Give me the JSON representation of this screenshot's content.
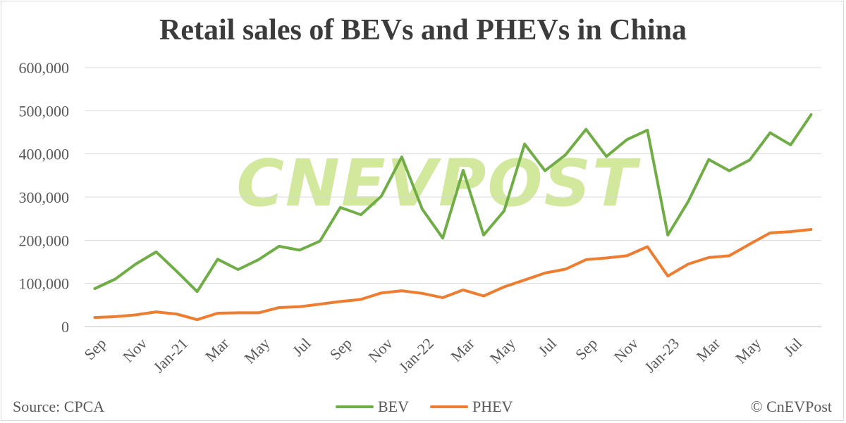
{
  "chart_data": {
    "type": "line",
    "title": "Retail sales of BEVs and PHEVs in China",
    "xlabel": "",
    "ylabel": "",
    "ylim": [
      0,
      600000
    ],
    "yticks": [
      "0",
      "100,000",
      "200,000",
      "300,000",
      "400,000",
      "500,000",
      "600,000"
    ],
    "grid": "horizontal",
    "legend_position": "bottom",
    "x_tick_labels": [
      "Sep",
      "",
      "Nov",
      "",
      "Jan-21",
      "",
      "Mar",
      "",
      "May",
      "",
      "Jul",
      "",
      "Sep",
      "",
      "Nov",
      "",
      "Jan-22",
      "",
      "Mar",
      "",
      "May",
      "",
      "Jul",
      "",
      "Sep",
      "",
      "Nov",
      "",
      "Jan-23",
      "",
      "Mar",
      "",
      "May",
      "",
      "Jul",
      ""
    ],
    "series": [
      {
        "name": "BEV",
        "color": "#70ad47",
        "values": [
          88000,
          110000,
          145000,
          173000,
          128000,
          81000,
          156000,
          132000,
          155000,
          186000,
          177000,
          198000,
          276000,
          259000,
          302000,
          393000,
          272000,
          205000,
          362000,
          212000,
          268000,
          423000,
          361000,
          398000,
          457000,
          394000,
          433000,
          455000,
          212000,
          290000,
          387000,
          361000,
          386000,
          449000,
          421000,
          491000
        ]
      },
      {
        "name": "PHEV",
        "color": "#ed7d31",
        "values": [
          21000,
          23000,
          27000,
          34000,
          29000,
          16000,
          31000,
          32000,
          32000,
          44000,
          46000,
          52000,
          58000,
          63000,
          78000,
          83000,
          77000,
          67000,
          85000,
          71000,
          92000,
          108000,
          124000,
          133000,
          155000,
          159000,
          164000,
          185000,
          117000,
          145000,
          160000,
          164000,
          191000,
          217000,
          220000,
          225000
        ]
      }
    ]
  },
  "footer": {
    "source": "Source: CPCA",
    "copyright": "© CnEVPost"
  },
  "watermark": "CNEVPOST"
}
